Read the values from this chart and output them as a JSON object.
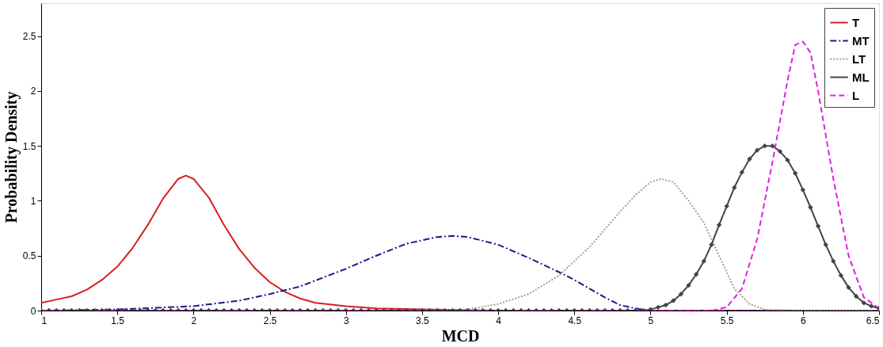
{
  "chart_data": {
    "type": "line",
    "xlabel": "MCD",
    "ylabel": "Probability Density",
    "xlim": [
      1,
      6.5
    ],
    "xticks": [
      1,
      1.5,
      2,
      2.5,
      3,
      3.5,
      4,
      4.5,
      5,
      5.5,
      6,
      6.5
    ],
    "ylim": [
      0,
      2.8
    ],
    "yticks": [
      0,
      0.5,
      1,
      1.5,
      2,
      2.5
    ],
    "grid": false,
    "legend": "top right",
    "series": [
      {
        "name": "T",
        "color": "#d42020",
        "line_style": "solid",
        "marker": "none",
        "x": [
          1,
          1.1,
          1.2,
          1.3,
          1.4,
          1.5,
          1.6,
          1.7,
          1.8,
          1.9,
          1.95,
          2.0,
          2.1,
          2.2,
          2.3,
          2.4,
          2.5,
          2.6,
          2.7,
          2.8,
          3.0,
          3.2,
          3.5,
          4.0,
          5.0,
          6.5
        ],
        "values": [
          0.07,
          0.1,
          0.13,
          0.19,
          0.28,
          0.4,
          0.57,
          0.78,
          1.02,
          1.2,
          1.23,
          1.2,
          1.03,
          0.78,
          0.56,
          0.39,
          0.26,
          0.17,
          0.11,
          0.07,
          0.04,
          0.02,
          0.01,
          0,
          0,
          0
        ]
      },
      {
        "name": "MT",
        "color": "#1a1a8c",
        "line_style": "dashdot",
        "marker": "none",
        "x": [
          1,
          1.5,
          2.0,
          2.3,
          2.5,
          2.7,
          3.0,
          3.2,
          3.4,
          3.6,
          3.7,
          3.8,
          4.0,
          4.2,
          4.4,
          4.5,
          4.6,
          4.7,
          4.8,
          4.9,
          5.0,
          6.5
        ],
        "values": [
          0,
          0.01,
          0.04,
          0.09,
          0.15,
          0.22,
          0.38,
          0.5,
          0.61,
          0.67,
          0.68,
          0.67,
          0.6,
          0.48,
          0.35,
          0.28,
          0.2,
          0.12,
          0.05,
          0.02,
          0,
          0
        ]
      },
      {
        "name": "LT",
        "color": "#a8a088",
        "line_style": "dotted",
        "marker": "none",
        "x": [
          1,
          3.5,
          3.8,
          4.0,
          4.2,
          4.4,
          4.6,
          4.8,
          4.9,
          5.0,
          5.07,
          5.15,
          5.25,
          5.35,
          5.45,
          5.55,
          5.65,
          5.75,
          6.0,
          6.5
        ],
        "values": [
          0,
          0,
          0.01,
          0.06,
          0.15,
          0.32,
          0.58,
          0.9,
          1.05,
          1.17,
          1.2,
          1.17,
          1.0,
          0.8,
          0.5,
          0.2,
          0.06,
          0.01,
          0,
          0
        ]
      },
      {
        "name": "ML",
        "color": "#444444",
        "line_style": "solid",
        "marker": "diamond",
        "x": [
          1,
          1.05,
          1.1,
          1.15,
          1.2,
          1.25,
          1.3,
          1.35,
          1.4,
          1.45,
          1.5,
          1.55,
          1.6,
          1.65,
          1.7,
          1.75,
          1.8,
          1.85,
          1.9,
          1.95,
          2,
          2.05,
          2.1,
          2.15,
          2.2,
          2.25,
          2.3,
          2.35,
          2.4,
          2.45,
          2.5,
          2.55,
          2.6,
          2.65,
          2.7,
          2.75,
          2.8,
          2.85,
          2.9,
          2.95,
          3,
          3.05,
          3.1,
          3.15,
          3.2,
          3.25,
          3.3,
          3.35,
          3.4,
          3.45,
          3.5,
          3.55,
          3.6,
          3.65,
          3.7,
          3.75,
          3.8,
          3.85,
          3.9,
          3.95,
          4,
          4.05,
          4.1,
          4.15,
          4.2,
          4.25,
          4.3,
          4.35,
          4.4,
          4.45,
          4.5,
          4.55,
          4.6,
          4.65,
          4.7,
          4.75,
          4.8,
          4.85,
          4.9,
          4.95,
          5,
          5.05,
          5.1,
          5.15,
          5.2,
          5.25,
          5.3,
          5.35,
          5.4,
          5.45,
          5.5,
          5.55,
          5.6,
          5.65,
          5.7,
          5.75,
          5.8,
          5.85,
          5.9,
          5.95,
          6,
          6.05,
          6.1,
          6.15,
          6.2,
          6.25,
          6.3,
          6.35,
          6.4,
          6.45,
          6.5
        ],
        "values": [
          0,
          0,
          0,
          0,
          0,
          0,
          0,
          0,
          0,
          0,
          0,
          0,
          0,
          0,
          0,
          0,
          0,
          0,
          0,
          0,
          0,
          0,
          0,
          0,
          0,
          0,
          0,
          0,
          0,
          0,
          0,
          0,
          0,
          0,
          0,
          0,
          0,
          0,
          0,
          0,
          0,
          0,
          0,
          0,
          0,
          0,
          0,
          0,
          0,
          0,
          0,
          0,
          0,
          0,
          0,
          0,
          0,
          0,
          0,
          0,
          0,
          0,
          0,
          0,
          0,
          0,
          0,
          0,
          0,
          0,
          0,
          0,
          0,
          0,
          0,
          0,
          0,
          0,
          0,
          0,
          0.01,
          0.03,
          0.05,
          0.09,
          0.15,
          0.23,
          0.33,
          0.45,
          0.6,
          0.78,
          0.95,
          1.12,
          1.26,
          1.38,
          1.46,
          1.5,
          1.5,
          1.45,
          1.37,
          1.25,
          1.1,
          0.94,
          0.77,
          0.6,
          0.45,
          0.32,
          0.21,
          0.13,
          0.07,
          0.04,
          0.02
        ]
      },
      {
        "name": "L",
        "color": "#e020e0",
        "line_style": "dashed",
        "marker": "none",
        "x": [
          1,
          5.4,
          5.5,
          5.6,
          5.7,
          5.8,
          5.9,
          5.95,
          6.0,
          6.05,
          6.1,
          6.2,
          6.3,
          6.4,
          6.5
        ],
        "values": [
          0,
          0,
          0.03,
          0.2,
          0.65,
          1.35,
          2.1,
          2.42,
          2.45,
          2.35,
          2.0,
          1.2,
          0.5,
          0.12,
          0.02
        ]
      }
    ]
  }
}
